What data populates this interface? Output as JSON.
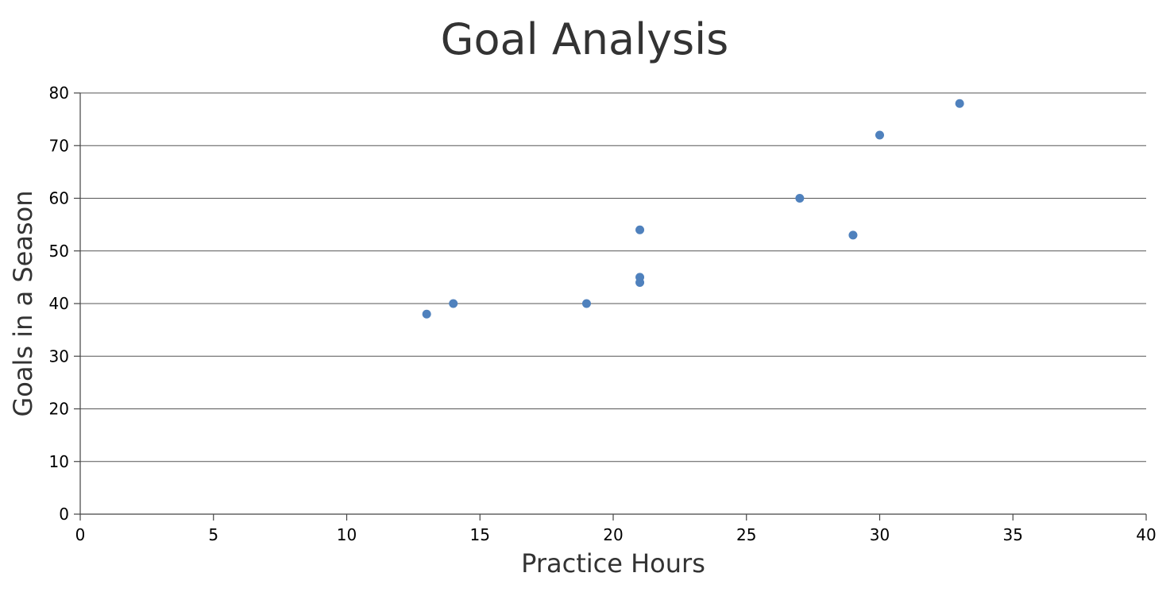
{
  "chart_data": {
    "type": "scatter",
    "title": "Goal Analysis",
    "xlabel": "Practice Hours",
    "ylabel": "Goals in a Season",
    "xlim": [
      0,
      40
    ],
    "ylim": [
      0,
      80
    ],
    "x_ticks": [
      0,
      5,
      10,
      15,
      20,
      25,
      30,
      35,
      40
    ],
    "y_ticks": [
      0,
      10,
      20,
      30,
      40,
      50,
      60,
      70,
      80
    ],
    "grid": "horizontal",
    "legend": "none",
    "marker_color": "#4F81BD",
    "points": [
      {
        "x": 13,
        "y": 38
      },
      {
        "x": 14,
        "y": 40
      },
      {
        "x": 19,
        "y": 40
      },
      {
        "x": 21,
        "y": 44
      },
      {
        "x": 21,
        "y": 45
      },
      {
        "x": 21,
        "y": 54
      },
      {
        "x": 27,
        "y": 60
      },
      {
        "x": 29,
        "y": 53
      },
      {
        "x": 30,
        "y": 72
      },
      {
        "x": 33,
        "y": 78
      }
    ]
  }
}
